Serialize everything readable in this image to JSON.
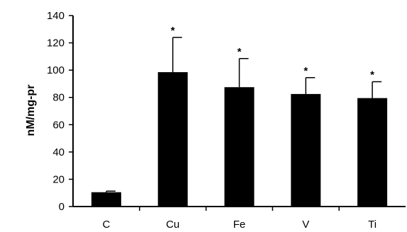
{
  "chart_data": {
    "type": "bar",
    "categories": [
      "C",
      "Cu",
      "Fe",
      "V",
      "Ti"
    ],
    "values": [
      10.5,
      98.5,
      87.5,
      82.5,
      79.5
    ],
    "errors": [
      0.8,
      25.5,
      21.0,
      12.0,
      12.0
    ],
    "significance": [
      "",
      "*",
      "*",
      "*",
      "*"
    ],
    "title": "",
    "xlabel": "",
    "ylabel": "nM/mg-pr",
    "ylim": [
      0,
      140
    ],
    "yticks": [
      0,
      20,
      40,
      60,
      80,
      100,
      120,
      140
    ],
    "grid": false,
    "bar_color": "#000000"
  }
}
